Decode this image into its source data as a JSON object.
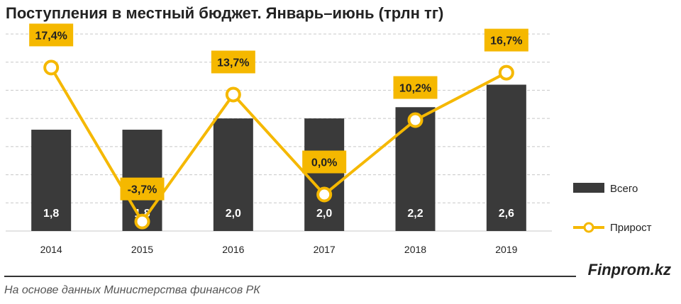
{
  "title": "Поступления в местный бюджет. Январь–июнь  (трлн тг)",
  "brand": "Finprom.kz",
  "source": "На основе данных Министерства финансов РК",
  "colors": {
    "bar": "#3a3a3a",
    "line": "#f5b800",
    "label_bg": "#f5b800",
    "grid": "#c8c8c8"
  },
  "chart_data": {
    "type": "bar",
    "categories": [
      "2014",
      "2015",
      "2016",
      "2017",
      "2018",
      "2019"
    ],
    "series": [
      {
        "name": "Всего",
        "type": "bar",
        "values": [
          1.8,
          1.8,
          2.0,
          2.0,
          2.2,
          2.6
        ],
        "labels": [
          "1,8",
          "1,8",
          "2,0",
          "2,0",
          "2,2",
          "2,6"
        ]
      },
      {
        "name": "Прирост",
        "type": "line",
        "values": [
          17.4,
          -3.7,
          13.7,
          0.0,
          10.2,
          16.7
        ],
        "labels": [
          "17,4%",
          "-3,7%",
          "13,7%",
          "0,0%",
          "10,2%",
          "16,7%"
        ]
      }
    ],
    "legend": [
      "Всего",
      "Прирост"
    ],
    "legend_position": "right",
    "grid": true,
    "ylim_bars": [
      0,
      3.5
    ],
    "ylim_line": [
      -5,
      22
    ]
  }
}
